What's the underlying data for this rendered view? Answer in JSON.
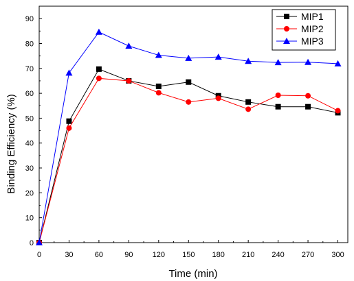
{
  "chart_data": {
    "type": "line",
    "xlabel": "Time (min)",
    "ylabel": "Binding Efficiency (%)",
    "xlim": [
      0,
      310
    ],
    "ylim": [
      0,
      95
    ],
    "x_ticks": [
      0,
      30,
      60,
      90,
      120,
      150,
      180,
      210,
      240,
      270,
      300
    ],
    "y_ticks": [
      0,
      10,
      20,
      30,
      40,
      50,
      60,
      70,
      80,
      90
    ],
    "x": [
      0,
      30,
      60,
      90,
      120,
      150,
      180,
      210,
      240,
      270,
      300
    ],
    "legend_position": "top-right",
    "grid": false,
    "series": [
      {
        "name": "MIP1",
        "marker": "square",
        "color": "#000000",
        "values": [
          0,
          48.8,
          69.7,
          65.0,
          62.8,
          64.5,
          59.0,
          56.5,
          54.6,
          54.6,
          52.2
        ]
      },
      {
        "name": "MIP2",
        "marker": "circle",
        "color": "#ff0000",
        "values": [
          0,
          46.0,
          66.0,
          65.0,
          60.2,
          56.5,
          58.0,
          53.6,
          59.2,
          59.0,
          53.0
        ]
      },
      {
        "name": "MIP3",
        "marker": "triangle",
        "color": "#0000ff",
        "values": [
          0,
          68.2,
          84.6,
          79.0,
          75.3,
          74.1,
          74.6,
          72.9,
          72.4,
          72.5,
          71.9
        ]
      }
    ]
  }
}
